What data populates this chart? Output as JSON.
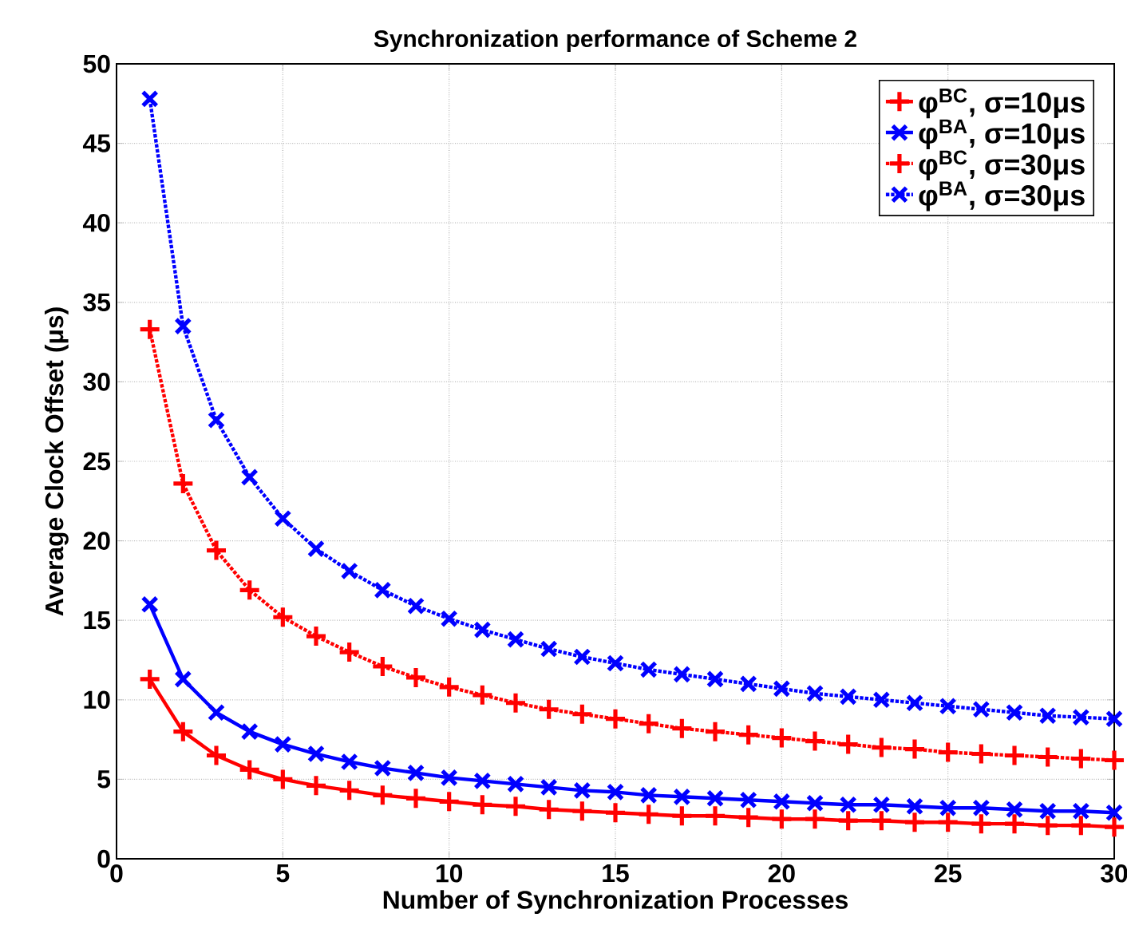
{
  "chart_data": {
    "type": "line",
    "title": "Synchronization performance of Scheme 2",
    "xlabel": "Number of Synchronization Processes",
    "ylabel": "Average Clock Offset (μs)",
    "x": [
      1,
      2,
      3,
      4,
      5,
      6,
      7,
      8,
      9,
      10,
      11,
      12,
      13,
      14,
      15,
      16,
      17,
      18,
      19,
      20,
      21,
      22,
      23,
      24,
      25,
      26,
      27,
      28,
      29,
      30
    ],
    "series": [
      {
        "name": "φ$^{BC}$, σ=10μs",
        "color": "#ff0000",
        "marker": "plus",
        "line_style": "solid",
        "values": [
          11.3,
          8.0,
          6.5,
          5.6,
          5.0,
          4.6,
          4.3,
          4.0,
          3.8,
          3.6,
          3.4,
          3.3,
          3.1,
          3.0,
          2.9,
          2.8,
          2.7,
          2.7,
          2.6,
          2.5,
          2.5,
          2.4,
          2.4,
          2.3,
          2.3,
          2.2,
          2.2,
          2.1,
          2.1,
          2.0
        ]
      },
      {
        "name": "φ$^{BA}$, σ=10μs",
        "color": "#0000ff",
        "marker": "cross",
        "line_style": "solid",
        "values": [
          16.0,
          11.3,
          9.2,
          8.0,
          7.2,
          6.6,
          6.1,
          5.7,
          5.4,
          5.1,
          4.9,
          4.7,
          4.5,
          4.3,
          4.2,
          4.0,
          3.9,
          3.8,
          3.7,
          3.6,
          3.5,
          3.4,
          3.4,
          3.3,
          3.2,
          3.2,
          3.1,
          3.0,
          3.0,
          2.9
        ]
      },
      {
        "name": "φ$^{BC}$, σ=30μs",
        "color": "#ff0000",
        "marker": "plus",
        "line_style": "dotted",
        "values": [
          33.3,
          23.6,
          19.4,
          16.9,
          15.2,
          14.0,
          13.0,
          12.1,
          11.4,
          10.8,
          10.3,
          9.8,
          9.4,
          9.1,
          8.8,
          8.5,
          8.2,
          8.0,
          7.8,
          7.6,
          7.4,
          7.2,
          7.0,
          6.9,
          6.7,
          6.6,
          6.5,
          6.4,
          6.3,
          6.2
        ]
      },
      {
        "name": "φ$^{BA}$, σ=30μs",
        "color": "#0000ff",
        "marker": "cross",
        "line_style": "dotted",
        "values": [
          47.8,
          33.5,
          27.6,
          24.0,
          21.4,
          19.5,
          18.1,
          16.9,
          15.9,
          15.1,
          14.4,
          13.8,
          13.2,
          12.7,
          12.3,
          11.9,
          11.6,
          11.3,
          11.0,
          10.7,
          10.4,
          10.2,
          10.0,
          9.8,
          9.6,
          9.4,
          9.2,
          9.0,
          8.9,
          8.8
        ]
      }
    ],
    "xlim": [
      0,
      30
    ],
    "ylim": [
      0,
      50
    ],
    "xticks": [
      0,
      5,
      10,
      15,
      20,
      25,
      30
    ],
    "yticks": [
      0,
      5,
      10,
      15,
      20,
      25,
      30,
      35,
      40,
      45,
      50
    ],
    "grid": true,
    "legend": "top right"
  }
}
